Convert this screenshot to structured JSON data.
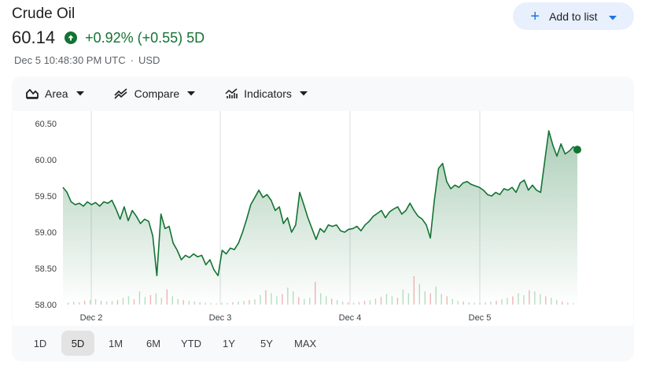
{
  "header": {
    "title": "Crude Oil",
    "price": "60.14",
    "change_pct": "+0.92%",
    "change_abs": "(+0.55)",
    "change_period": "5D",
    "timestamp": "Dec 5 10:48:30 PM UTC",
    "currency": "USD",
    "accent_color": "#137333"
  },
  "actions": {
    "add_to_list": "Add to list"
  },
  "toolbar": {
    "area_label": "Area",
    "compare_label": "Compare",
    "indicators_label": "Indicators"
  },
  "ranges": [
    "1D",
    "5D",
    "1M",
    "6M",
    "YTD",
    "1Y",
    "5Y",
    "MAX"
  ],
  "active_range": "5D",
  "chart_data": {
    "type": "area",
    "y_ticks": [
      "60.50",
      "60.00",
      "59.50",
      "59.00",
      "58.50",
      "58.00"
    ],
    "x_ticks": [
      "Dec 2",
      "Dec 3",
      "Dec 4",
      "Dec 5"
    ],
    "ylim": [
      58.0,
      60.5
    ],
    "line_color": "#137333",
    "series": [
      {
        "values": [
          59.62,
          59.55,
          59.42,
          59.38,
          59.4,
          59.36,
          59.42,
          59.38,
          59.41,
          59.36,
          59.42,
          59.4,
          59.44,
          59.32,
          59.18,
          59.35,
          59.16,
          59.3,
          59.22,
          59.12,
          59.18,
          59.15,
          58.95,
          58.4,
          59.25,
          59.05,
          59.08,
          58.85,
          58.75,
          58.62,
          58.68,
          58.65,
          58.7,
          58.66,
          58.68,
          58.55,
          58.62,
          58.48,
          58.4,
          58.75,
          58.7,
          58.78,
          58.76,
          58.85,
          59.0,
          59.18,
          59.38,
          59.48,
          59.58,
          59.48,
          59.52,
          59.44,
          59.3,
          59.35,
          59.12,
          59.2,
          59.0,
          59.1,
          59.55,
          59.38,
          59.2,
          59.05,
          58.9,
          59.05,
          59.0,
          59.1,
          59.08,
          59.1,
          59.02,
          59.0,
          59.04,
          59.05,
          59.08,
          59.02,
          59.1,
          59.15,
          59.22,
          59.26,
          59.3,
          59.2,
          59.28,
          59.32,
          59.35,
          59.25,
          59.3,
          59.4,
          59.3,
          59.22,
          59.18,
          59.1,
          58.92,
          59.45,
          59.88,
          59.95,
          59.7,
          59.6,
          59.65,
          59.62,
          59.68,
          59.7,
          59.66,
          59.64,
          59.62,
          59.58,
          59.52,
          59.5,
          59.55,
          59.52,
          59.6,
          59.58,
          59.62,
          59.55,
          59.68,
          59.72,
          59.58,
          59.65,
          59.58,
          59.55,
          59.98,
          60.4,
          60.2,
          60.05,
          60.22,
          60.08,
          60.12,
          60.18,
          60.14
        ]
      }
    ]
  },
  "volume_data": {
    "values": [
      0.05,
      0.08,
      0.06,
      0.1,
      0.12,
      0.15,
      0.1,
      0.08,
      0.09,
      0.12,
      0.18,
      0.22,
      0.14,
      0.35,
      0.2,
      0.25,
      0.3,
      0.18,
      0.4,
      0.22,
      0.15,
      0.12,
      0.1,
      0.08,
      0.06,
      0.05,
      0.04,
      0.03,
      0.05,
      0.04,
      0.06,
      0.08,
      0.1,
      0.12,
      0.14,
      0.25,
      0.38,
      0.3,
      0.22,
      0.28,
      0.45,
      0.35,
      0.2,
      0.15,
      0.18,
      0.6,
      0.3,
      0.22,
      0.16,
      0.12,
      0.08,
      0.06,
      0.05,
      0.07,
      0.1,
      0.12,
      0.16,
      0.2,
      0.28,
      0.22,
      0.18,
      0.4,
      0.3,
      0.75,
      0.55,
      0.35,
      0.3,
      0.48,
      0.28,
      0.22,
      0.15,
      0.1,
      0.08,
      0.06,
      0.05,
      0.04,
      0.06,
      0.08,
      0.1,
      0.14,
      0.18,
      0.22,
      0.3,
      0.25,
      0.38,
      0.35,
      0.28,
      0.22,
      0.18,
      0.12,
      0.08,
      0.05,
      0.04
    ]
  }
}
